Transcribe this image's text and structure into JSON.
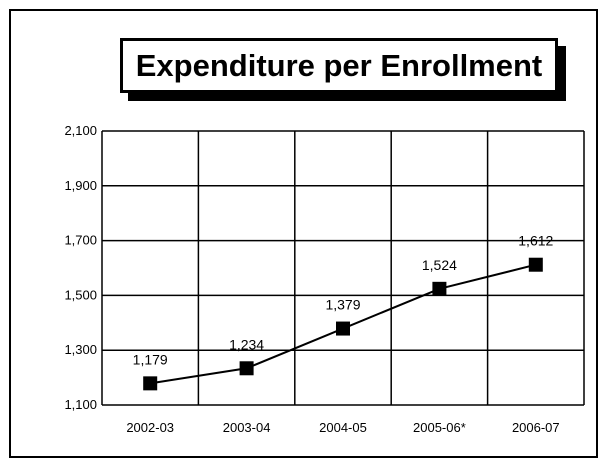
{
  "chart_data": {
    "type": "line",
    "title": "Expenditure per Enrollment",
    "xlabel": "",
    "ylabel": "",
    "categories": [
      "2002-03",
      "2003-04",
      "2004-05",
      "2005-06*",
      "2006-07"
    ],
    "series": [
      {
        "values": [
          1179,
          1234,
          1379,
          1524,
          1612
        ]
      }
    ],
    "data_labels": [
      "1,179",
      "1,234",
      "1,379",
      "1,524",
      "1,612"
    ],
    "y_ticks": [
      1100,
      1300,
      1500,
      1700,
      1900,
      2100
    ],
    "y_tick_labels": [
      "1,100",
      "1,300",
      "1,500",
      "1,700",
      "1,900",
      "2,100"
    ],
    "ylim": [
      1100,
      2100
    ],
    "grid": true,
    "legend": "none",
    "marker": "square",
    "line_color": "#000000"
  }
}
